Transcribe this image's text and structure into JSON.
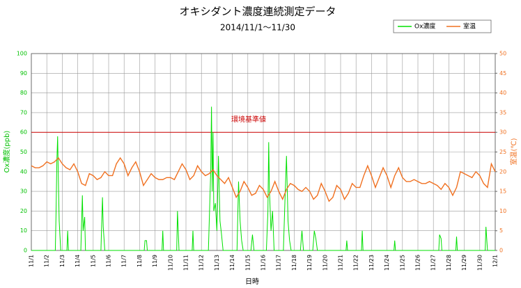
{
  "chart_data": {
    "type": "line",
    "title": "オキシダント濃度連続測定データ",
    "subtitle": "2014/11/1～11/30",
    "xlabel": "日時",
    "ylabel": "Ox濃度(ppb)",
    "y2label": "室温(℃)",
    "annotation": "環境基準値",
    "threshold": 60,
    "threshold_color": "#cc0000",
    "xlim": [
      0,
      30
    ],
    "xticks": [
      {
        "value": 0,
        "label": "11/1"
      },
      {
        "value": 1,
        "label": "11/2"
      },
      {
        "value": 2,
        "label": "11/3"
      },
      {
        "value": 3,
        "label": "11/4"
      },
      {
        "value": 4,
        "label": "11/5"
      },
      {
        "value": 5,
        "label": "11/6"
      },
      {
        "value": 6,
        "label": "11/7"
      },
      {
        "value": 7,
        "label": "11/8"
      },
      {
        "value": 8,
        "label": "11/9"
      },
      {
        "value": 9,
        "label": "11/10"
      },
      {
        "value": 10,
        "label": "11/11"
      },
      {
        "value": 11,
        "label": "11/12"
      },
      {
        "value": 12,
        "label": "11/13"
      },
      {
        "value": 13,
        "label": "11/14"
      },
      {
        "value": 14,
        "label": "11/15"
      },
      {
        "value": 15,
        "label": "11/16"
      },
      {
        "value": 16,
        "label": "11/17"
      },
      {
        "value": 17,
        "label": "11/18"
      },
      {
        "value": 18,
        "label": "11/19"
      },
      {
        "value": 19,
        "label": "11/20"
      },
      {
        "value": 20,
        "label": "11/21"
      },
      {
        "value": 21,
        "label": "11/22"
      },
      {
        "value": 22,
        "label": "11/23"
      },
      {
        "value": 23,
        "label": "11/24"
      },
      {
        "value": 24,
        "label": "11/25"
      },
      {
        "value": 25,
        "label": "11/26"
      },
      {
        "value": 26,
        "label": "11/27"
      },
      {
        "value": 27,
        "label": "11/28"
      },
      {
        "value": 28,
        "label": "11/29"
      },
      {
        "value": 29,
        "label": "11/30"
      },
      {
        "value": 30,
        "label": "12/1"
      }
    ],
    "ylim": [
      0,
      100
    ],
    "yticks": [
      0,
      10,
      20,
      30,
      40,
      50,
      60,
      70,
      80,
      90,
      100
    ],
    "y2lim": [
      0,
      50
    ],
    "y2ticks": [
      0,
      5,
      10,
      15,
      20,
      25,
      30,
      35,
      40,
      45,
      50
    ],
    "grid": true,
    "legend": "top-right",
    "series": [
      {
        "name": "Ox濃度",
        "color": "#00e000",
        "x": [
          0,
          1.55,
          1.6,
          1.65,
          1.7,
          1.75,
          1.8,
          1.9,
          2.3,
          2.35,
          2.4,
          3.2,
          3.3,
          3.35,
          3.45,
          3.5,
          4.5,
          4.6,
          4.65,
          4.75,
          7.3,
          7.35,
          7.45,
          7.5,
          8.45,
          8.5,
          8.55,
          9.4,
          9.45,
          9.55,
          10.4,
          10.45,
          10.5,
          11.45,
          11.6,
          11.65,
          11.7,
          11.75,
          11.8,
          11.9,
          12.0,
          12.1,
          12.2,
          12.3,
          12.4,
          13.3,
          13.4,
          13.5,
          13.6,
          13.7,
          14.2,
          14.3,
          14.4,
          15.2,
          15.3,
          15.35,
          15.4,
          15.5,
          15.6,
          15.7,
          16.3,
          16.4,
          16.5,
          16.6,
          16.7,
          16.8,
          17.4,
          17.5,
          17.6,
          18.2,
          18.3,
          18.4,
          18.5,
          20.35,
          20.4,
          20.45,
          21.35,
          21.4,
          21.45,
          23.45,
          23.5,
          23.55,
          26.35,
          26.4,
          26.5,
          26.55,
          27.45,
          27.5,
          27.55,
          29.35,
          29.4,
          29.5,
          30
        ],
        "values": [
          0,
          0,
          20,
          45,
          58,
          35,
          15,
          0,
          0,
          10,
          0,
          0,
          28,
          10,
          17,
          0,
          0,
          27,
          12,
          0,
          0,
          5,
          5,
          0,
          0,
          10,
          0,
          0,
          20,
          0,
          0,
          10,
          0,
          0,
          40,
          73,
          30,
          60,
          20,
          24,
          10,
          48,
          15,
          8,
          0,
          0,
          35,
          15,
          5,
          0,
          0,
          8,
          0,
          0,
          20,
          55,
          30,
          10,
          20,
          0,
          0,
          25,
          48,
          15,
          5,
          0,
          0,
          10,
          0,
          0,
          10,
          6,
          0,
          0,
          5,
          0,
          0,
          10,
          0,
          0,
          5,
          0,
          0,
          8,
          6,
          0,
          0,
          7,
          0,
          0,
          12,
          0,
          0
        ]
      },
      {
        "name": "室温",
        "color": "#f07020",
        "axis": "y2",
        "x": [
          0,
          0.25,
          0.5,
          0.75,
          1,
          1.25,
          1.5,
          1.75,
          2,
          2.25,
          2.5,
          2.75,
          3,
          3.25,
          3.5,
          3.75,
          4,
          4.25,
          4.5,
          4.75,
          5,
          5.25,
          5.5,
          5.75,
          6,
          6.25,
          6.5,
          6.75,
          7,
          7.25,
          7.5,
          7.75,
          8,
          8.25,
          8.5,
          8.75,
          9,
          9.25,
          9.5,
          9.75,
          10,
          10.25,
          10.5,
          10.75,
          11,
          11.25,
          11.5,
          11.75,
          12,
          12.25,
          12.5,
          12.75,
          13,
          13.25,
          13.5,
          13.75,
          14,
          14.25,
          14.5,
          14.75,
          15,
          15.25,
          15.5,
          15.75,
          16,
          16.25,
          16.5,
          16.75,
          17,
          17.25,
          17.5,
          17.75,
          18,
          18.25,
          18.5,
          18.75,
          19,
          19.25,
          19.5,
          19.75,
          20,
          20.25,
          20.5,
          20.75,
          21,
          21.25,
          21.5,
          21.75,
          22,
          22.25,
          22.5,
          22.75,
          23,
          23.25,
          23.5,
          23.75,
          24,
          24.25,
          24.5,
          24.75,
          25,
          25.25,
          25.5,
          25.75,
          26,
          26.25,
          26.5,
          26.75,
          27,
          27.25,
          27.5,
          27.75,
          28,
          28.25,
          28.5,
          28.75,
          29,
          29.25,
          29.5,
          29.75,
          30
        ],
        "values": [
          21.5,
          21,
          21,
          21.5,
          22.5,
          22,
          22.5,
          23.5,
          22,
          21,
          20.5,
          22,
          20,
          17,
          16.5,
          19.5,
          19,
          18,
          18.5,
          20,
          19,
          19,
          22,
          23.5,
          22,
          19,
          21,
          22.5,
          20,
          16.5,
          18,
          19.5,
          18.5,
          18,
          18,
          18.5,
          18.5,
          18,
          20,
          22,
          20.5,
          18,
          19,
          21.5,
          20,
          19,
          19.5,
          20.5,
          19,
          18,
          17,
          18.5,
          16,
          13.5,
          15,
          17.5,
          16,
          14,
          14.5,
          16.5,
          15.5,
          13.5,
          15,
          17.5,
          15,
          13,
          15.5,
          17,
          16.5,
          15.5,
          15,
          16,
          15,
          13,
          14,
          17,
          15,
          12.5,
          13.5,
          16.5,
          15.5,
          13,
          14.5,
          17,
          16,
          16,
          19,
          21.5,
          19,
          16,
          18.5,
          21,
          19,
          16,
          19,
          21,
          18.5,
          17.5,
          17.5,
          18,
          17.5,
          17,
          17,
          17.5,
          17,
          16.5,
          15.5,
          17,
          16,
          14,
          16,
          20,
          19.5,
          19,
          18.5,
          20,
          19,
          17,
          16,
          22,
          20
        ]
      }
    ]
  }
}
